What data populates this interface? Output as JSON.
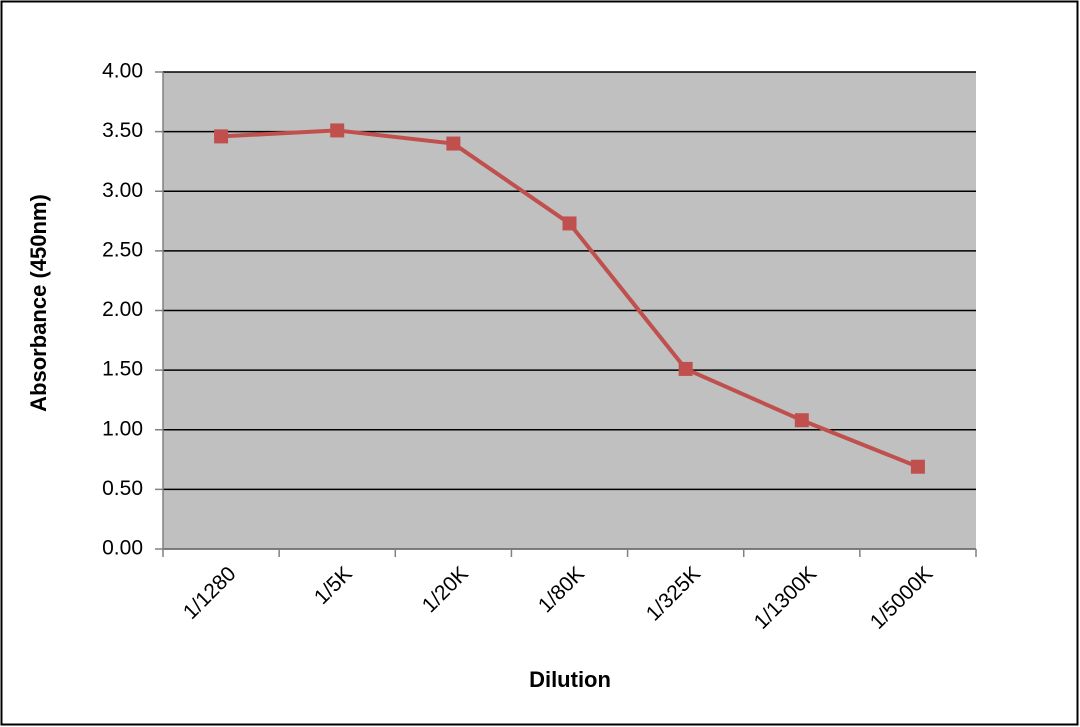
{
  "chart_data": {
    "type": "line",
    "x_label": "Dilution",
    "y_label": "Absorbance (450nm)",
    "categories": [
      "1/1280",
      "1/5K",
      "1/20K",
      "1/80K",
      "1/325K",
      "1/1300K",
      "1/5000K"
    ],
    "series": [
      {
        "color": "#c0504d",
        "values": [
          3.46,
          3.51,
          3.4,
          2.73,
          1.51,
          1.08,
          0.69
        ]
      }
    ],
    "ylim": [
      0,
      4
    ],
    "yticks": [
      {
        "value": 0,
        "label": "0.00"
      },
      {
        "value": 0.5,
        "label": "0.50"
      },
      {
        "value": 1,
        "label": "1.00"
      },
      {
        "value": 1.5,
        "label": "1.50"
      },
      {
        "value": 2,
        "label": "2.00"
      },
      {
        "value": 2.5,
        "label": "2.50"
      },
      {
        "value": 3,
        "label": "3.00"
      },
      {
        "value": 3.5,
        "label": "3.50"
      },
      {
        "value": 4,
        "label": "4.00"
      }
    ],
    "grid": true,
    "plot_background": "#c0c0c0"
  }
}
